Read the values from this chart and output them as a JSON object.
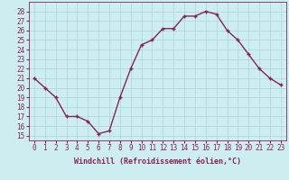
{
  "hours": [
    0,
    1,
    2,
    3,
    4,
    5,
    6,
    7,
    8,
    9,
    10,
    11,
    12,
    13,
    14,
    15,
    16,
    17,
    18,
    19,
    20,
    21,
    22,
    23
  ],
  "values": [
    21,
    20,
    19,
    17,
    17,
    16.5,
    15.2,
    15.5,
    19,
    22,
    24.5,
    25,
    26.2,
    26.2,
    27.5,
    27.5,
    28,
    27.7,
    26,
    25,
    23.5,
    22,
    21,
    20.3
  ],
  "line_color": "#882255",
  "marker": "+",
  "marker_size": 3.5,
  "linewidth": 1.0,
  "xlabel": "Windchill (Refroidissement éolien,°C)",
  "xlabel_fontsize": 6.0,
  "ylabel_ticks": [
    15,
    16,
    17,
    18,
    19,
    20,
    21,
    22,
    23,
    24,
    25,
    26,
    27,
    28
  ],
  "ylim": [
    14.5,
    29.0
  ],
  "xlim": [
    -0.5,
    23.5
  ],
  "background_color": "#cceef0",
  "grid_color": "#b0d8dc",
  "tick_fontsize": 5.5,
  "label_color": "#882255"
}
